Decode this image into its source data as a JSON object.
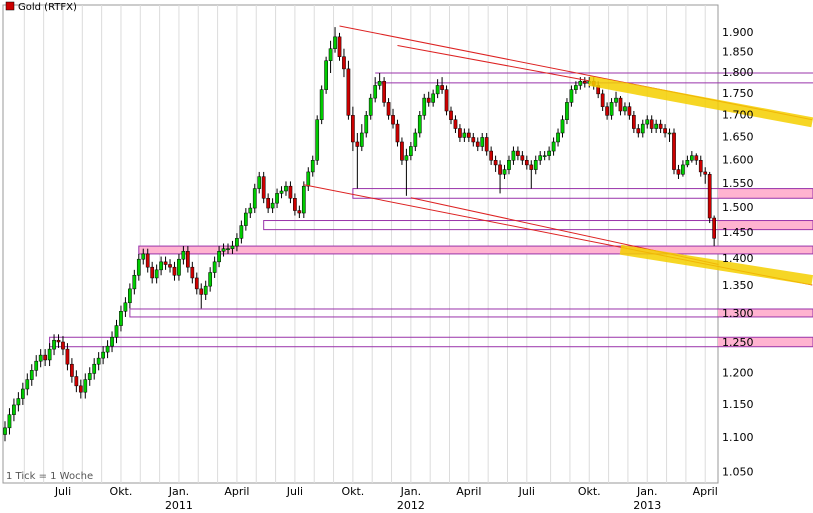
{
  "chart_data": {
    "type": "candlestick",
    "series_name": "Gold (RTFX)",
    "color": "#cc0000",
    "up_color": "#00cc00",
    "down_color": "#cc0000",
    "footnote": "1 Tick = 1 Woche",
    "log_scale": true,
    "grid": true,
    "ylim": [
      1035,
      1973
    ],
    "yticks": [
      {
        "value": 1050,
        "label": "1.050"
      },
      {
        "value": 1100,
        "label": "1.100"
      },
      {
        "value": 1150,
        "label": "1.150"
      },
      {
        "value": 1200,
        "label": "1.200"
      },
      {
        "value": 1250,
        "label": "1.250"
      },
      {
        "value": 1300,
        "label": "1.300"
      },
      {
        "value": 1350,
        "label": "1.350"
      },
      {
        "value": 1400,
        "label": "1.400"
      },
      {
        "value": 1450,
        "label": "1.450"
      },
      {
        "value": 1500,
        "label": "1.500"
      },
      {
        "value": 1550,
        "label": "1.550"
      },
      {
        "value": 1600,
        "label": "1.600"
      },
      {
        "value": 1650,
        "label": "1.650"
      },
      {
        "value": 1700,
        "label": "1.700"
      },
      {
        "value": 1750,
        "label": "1.750"
      },
      {
        "value": 1800,
        "label": "1.800"
      },
      {
        "value": 1850,
        "label": "1.850"
      },
      {
        "value": 1900,
        "label": "1.900"
      }
    ],
    "categories": [
      null,
      null,
      null,
      null,
      null,
      null,
      null,
      null,
      null,
      null,
      null,
      null,
      null,
      "Juli",
      null,
      null,
      null,
      null,
      null,
      null,
      null,
      null,
      null,
      null,
      null,
      null,
      "Okt.",
      null,
      null,
      null,
      null,
      null,
      null,
      null,
      null,
      null,
      null,
      null,
      null,
      "Jan.",
      null,
      null,
      null,
      null,
      null,
      null,
      null,
      null,
      null,
      null,
      null,
      null,
      "April",
      null,
      null,
      null,
      null,
      null,
      null,
      null,
      null,
      null,
      null,
      null,
      null,
      "Juli",
      null,
      null,
      null,
      null,
      null,
      null,
      null,
      null,
      null,
      null,
      null,
      null,
      "Okt.",
      null,
      null,
      null,
      null,
      null,
      null,
      null,
      null,
      null,
      null,
      null,
      null,
      "Jan.",
      null,
      null,
      null,
      null,
      null,
      null,
      null,
      null,
      null,
      null,
      null,
      null,
      "April",
      null,
      null,
      null,
      null,
      null,
      null,
      null,
      null,
      null,
      null,
      null,
      null,
      "Juli",
      null,
      null,
      null,
      null,
      null,
      null,
      null,
      null,
      null,
      null,
      null,
      null,
      null,
      "Okt.",
      null,
      null,
      null,
      null,
      null,
      null,
      null,
      null,
      null,
      null,
      null,
      null,
      "Jan.",
      null,
      null,
      null,
      null,
      null,
      null,
      null,
      null,
      null,
      null,
      null,
      null,
      "April",
      null,
      null
    ],
    "years": [
      null,
      null,
      null,
      null,
      null,
      null,
      null,
      null,
      null,
      null,
      null,
      null,
      null,
      null,
      null,
      null,
      null,
      null,
      null,
      null,
      null,
      null,
      null,
      null,
      null,
      null,
      null,
      null,
      null,
      null,
      null,
      null,
      null,
      null,
      null,
      null,
      null,
      null,
      null,
      "2011",
      null,
      null,
      null,
      null,
      null,
      null,
      null,
      null,
      null,
      null,
      null,
      null,
      null,
      null,
      null,
      null,
      null,
      null,
      null,
      null,
      null,
      null,
      null,
      null,
      null,
      null,
      null,
      null,
      null,
      null,
      null,
      null,
      null,
      null,
      null,
      null,
      null,
      null,
      null,
      null,
      null,
      null,
      null,
      null,
      null,
      null,
      null,
      null,
      null,
      null,
      null,
      "2012",
      null,
      null,
      null,
      null,
      null,
      null,
      null,
      null,
      null,
      null,
      null,
      null,
      null,
      null,
      null,
      null,
      null,
      null,
      null,
      null,
      null,
      null,
      null,
      null,
      null,
      null,
      null,
      null,
      null,
      null,
      null,
      null,
      null,
      null,
      null,
      null,
      null,
      null,
      null,
      null,
      null,
      null,
      null,
      null,
      null,
      null,
      null,
      null,
      null,
      null,
      null,
      null,
      "2013",
      null,
      null,
      null,
      null,
      null,
      null,
      null,
      null,
      null,
      null,
      null,
      null,
      null,
      null,
      null
    ],
    "open": [
      1105,
      1115,
      1135,
      1150,
      1160,
      1175,
      1190,
      1205,
      1220,
      1230,
      1222,
      1240,
      1255,
      1252,
      1240,
      1215,
      1195,
      1180,
      1170,
      1190,
      1200,
      1215,
      1225,
      1235,
      1245,
      1260,
      1280,
      1305,
      1320,
      1345,
      1370,
      1400,
      1410,
      1385,
      1365,
      1380,
      1395,
      1390,
      1385,
      1370,
      1400,
      1415,
      1385,
      1365,
      1345,
      1335,
      1350,
      1375,
      1395,
      1415,
      1420,
      1420,
      1425,
      1440,
      1465,
      1490,
      1500,
      1540,
      1565,
      1520,
      1500,
      1510,
      1530,
      1535,
      1545,
      1520,
      1495,
      1490,
      1545,
      1575,
      1600,
      1690,
      1760,
      1830,
      1860,
      1890,
      1840,
      1810,
      1700,
      1640,
      1630,
      1660,
      1700,
      1740,
      1770,
      1780,
      1730,
      1700,
      1680,
      1640,
      1600,
      1610,
      1630,
      1660,
      1700,
      1740,
      1730,
      1750,
      1770,
      1760,
      1710,
      1690,
      1670,
      1650,
      1660,
      1650,
      1640,
      1630,
      1650,
      1620,
      1600,
      1590,
      1570,
      1580,
      1600,
      1620,
      1610,
      1600,
      1590,
      1580,
      1600,
      1610,
      1610,
      1620,
      1640,
      1660,
      1690,
      1730,
      1760,
      1770,
      1780,
      1775,
      1780,
      1770,
      1750,
      1720,
      1700,
      1730,
      1740,
      1710,
      1720,
      1700,
      1670,
      1660,
      1680,
      1690,
      1670,
      1680,
      1670,
      1660,
      1660,
      1580,
      1570,
      1590,
      1600,
      1610,
      1600,
      1575,
      1570,
      1480
    ],
    "high": [
      1125,
      1145,
      1160,
      1170,
      1185,
      1200,
      1215,
      1230,
      1240,
      1240,
      1250,
      1265,
      1265,
      1262,
      1250,
      1225,
      1205,
      1190,
      1200,
      1210,
      1225,
      1235,
      1245,
      1255,
      1270,
      1290,
      1315,
      1330,
      1355,
      1380,
      1410,
      1420,
      1420,
      1395,
      1390,
      1405,
      1405,
      1400,
      1395,
      1410,
      1425,
      1425,
      1395,
      1375,
      1355,
      1360,
      1385,
      1405,
      1425,
      1430,
      1430,
      1435,
      1450,
      1475,
      1500,
      1510,
      1550,
      1575,
      1575,
      1530,
      1520,
      1540,
      1545,
      1555,
      1555,
      1530,
      1505,
      1555,
      1585,
      1610,
      1700,
      1770,
      1840,
      1880,
      1915,
      1900,
      1860,
      1830,
      1720,
      1660,
      1680,
      1710,
      1750,
      1790,
      1800,
      1790,
      1740,
      1715,
      1690,
      1650,
      1625,
      1640,
      1670,
      1710,
      1750,
      1755,
      1760,
      1785,
      1790,
      1770,
      1720,
      1700,
      1680,
      1670,
      1670,
      1660,
      1650,
      1660,
      1660,
      1630,
      1610,
      1600,
      1590,
      1610,
      1630,
      1630,
      1620,
      1610,
      1600,
      1610,
      1620,
      1620,
      1630,
      1650,
      1670,
      1700,
      1740,
      1770,
      1780,
      1790,
      1790,
      1790,
      1790,
      1780,
      1760,
      1730,
      1740,
      1755,
      1745,
      1730,
      1730,
      1710,
      1680,
      1690,
      1700,
      1700,
      1690,
      1690,
      1680,
      1670,
      1670,
      1590,
      1600,
      1610,
      1620,
      1615,
      1610,
      1585,
      1575,
      1485
    ],
    "low": [
      1095,
      1105,
      1125,
      1140,
      1150,
      1165,
      1180,
      1195,
      1210,
      1212,
      1212,
      1230,
      1242,
      1230,
      1205,
      1185,
      1170,
      1160,
      1160,
      1180,
      1190,
      1205,
      1215,
      1225,
      1235,
      1250,
      1270,
      1295,
      1310,
      1335,
      1360,
      1390,
      1375,
      1355,
      1355,
      1370,
      1380,
      1375,
      1360,
      1360,
      1390,
      1375,
      1355,
      1335,
      1310,
      1325,
      1340,
      1365,
      1385,
      1405,
      1410,
      1410,
      1415,
      1430,
      1455,
      1480,
      1490,
      1530,
      1510,
      1490,
      1490,
      1500,
      1520,
      1525,
      1510,
      1485,
      1480,
      1480,
      1535,
      1565,
      1590,
      1680,
      1750,
      1800,
      1850,
      1830,
      1790,
      1690,
      1620,
      1540,
      1620,
      1650,
      1690,
      1730,
      1760,
      1720,
      1690,
      1670,
      1630,
      1590,
      1525,
      1600,
      1620,
      1650,
      1690,
      1720,
      1720,
      1740,
      1750,
      1700,
      1680,
      1660,
      1640,
      1640,
      1640,
      1630,
      1620,
      1620,
      1610,
      1590,
      1575,
      1530,
      1560,
      1570,
      1590,
      1600,
      1590,
      1580,
      1540,
      1570,
      1590,
      1600,
      1600,
      1610,
      1630,
      1650,
      1680,
      1720,
      1750,
      1760,
      1765,
      1765,
      1760,
      1740,
      1710,
      1690,
      1690,
      1720,
      1700,
      1700,
      1690,
      1660,
      1650,
      1650,
      1670,
      1660,
      1660,
      1660,
      1650,
      1640,
      1570,
      1560,
      1565,
      1585,
      1595,
      1590,
      1565,
      1550,
      1470,
      1425
    ],
    "close": [
      1115,
      1135,
      1150,
      1160,
      1175,
      1190,
      1205,
      1220,
      1230,
      1222,
      1240,
      1255,
      1252,
      1240,
      1215,
      1195,
      1180,
      1170,
      1190,
      1200,
      1215,
      1225,
      1235,
      1245,
      1260,
      1280,
      1305,
      1320,
      1345,
      1370,
      1400,
      1410,
      1385,
      1365,
      1380,
      1395,
      1390,
      1385,
      1370,
      1400,
      1415,
      1385,
      1365,
      1345,
      1335,
      1350,
      1375,
      1395,
      1415,
      1420,
      1420,
      1425,
      1440,
      1465,
      1490,
      1500,
      1540,
      1565,
      1520,
      1500,
      1510,
      1530,
      1535,
      1545,
      1520,
      1495,
      1490,
      1545,
      1575,
      1600,
      1690,
      1760,
      1830,
      1860,
      1890,
      1840,
      1810,
      1700,
      1640,
      1630,
      1660,
      1700,
      1740,
      1770,
      1780,
      1730,
      1700,
      1680,
      1640,
      1600,
      1610,
      1630,
      1660,
      1700,
      1740,
      1730,
      1750,
      1770,
      1760,
      1710,
      1690,
      1670,
      1650,
      1660,
      1650,
      1640,
      1630,
      1650,
      1620,
      1600,
      1590,
      1570,
      1580,
      1600,
      1620,
      1610,
      1600,
      1590,
      1580,
      1600,
      1610,
      1610,
      1620,
      1640,
      1660,
      1690,
      1730,
      1760,
      1770,
      1780,
      1775,
      1780,
      1770,
      1750,
      1720,
      1700,
      1730,
      1740,
      1710,
      1720,
      1700,
      1670,
      1660,
      1680,
      1690,
      1670,
      1680,
      1670,
      1660,
      1660,
      1580,
      1570,
      1590,
      1600,
      1610,
      1600,
      1575,
      1570,
      1480,
      1440
    ],
    "level_color": "#9933aa",
    "band_color": "#ffb3d0",
    "levels": [
      {
        "from": 83,
        "value": 1800
      },
      {
        "from": 83,
        "value": 1776
      }
    ],
    "bands": [
      {
        "from": 78,
        "low": 1520,
        "high": 1540,
        "filled": false
      },
      {
        "from": 58,
        "low": 1457,
        "high": 1475,
        "filled": false
      },
      {
        "from": 30,
        "low": 1410,
        "high": 1425,
        "filled": true
      },
      {
        "from": 28,
        "low": 1295,
        "high": 1309,
        "filled": false
      },
      {
        "from": 10,
        "low": 1244,
        "high": 1260,
        "filled": false
      }
    ],
    "trend_lines": [
      {
        "from": [
          75,
          1918
        ],
        "to": [
          181,
          1690
        ],
        "color": "#dd2222",
        "width": 1
      },
      {
        "from": [
          88,
          1868
        ],
        "to": [
          131,
          1781
        ],
        "color": "#dd2222",
        "width": 1
      },
      {
        "from": [
          67,
          1548
        ],
        "to": [
          181,
          1352
        ],
        "color": "#dd2222",
        "width": 1
      },
      {
        "from": [
          91,
          1521
        ],
        "to": [
          160,
          1390
        ],
        "color": "#dd2222",
        "width": 1
      },
      {
        "from": [
          131,
          1781
        ],
        "to": [
          181,
          1684
        ],
        "color": "#f5d000",
        "width": 10
      },
      {
        "from": [
          138,
          1418
        ],
        "to": [
          181,
          1361
        ],
        "color": "#f5d000",
        "width": 10
      }
    ]
  }
}
